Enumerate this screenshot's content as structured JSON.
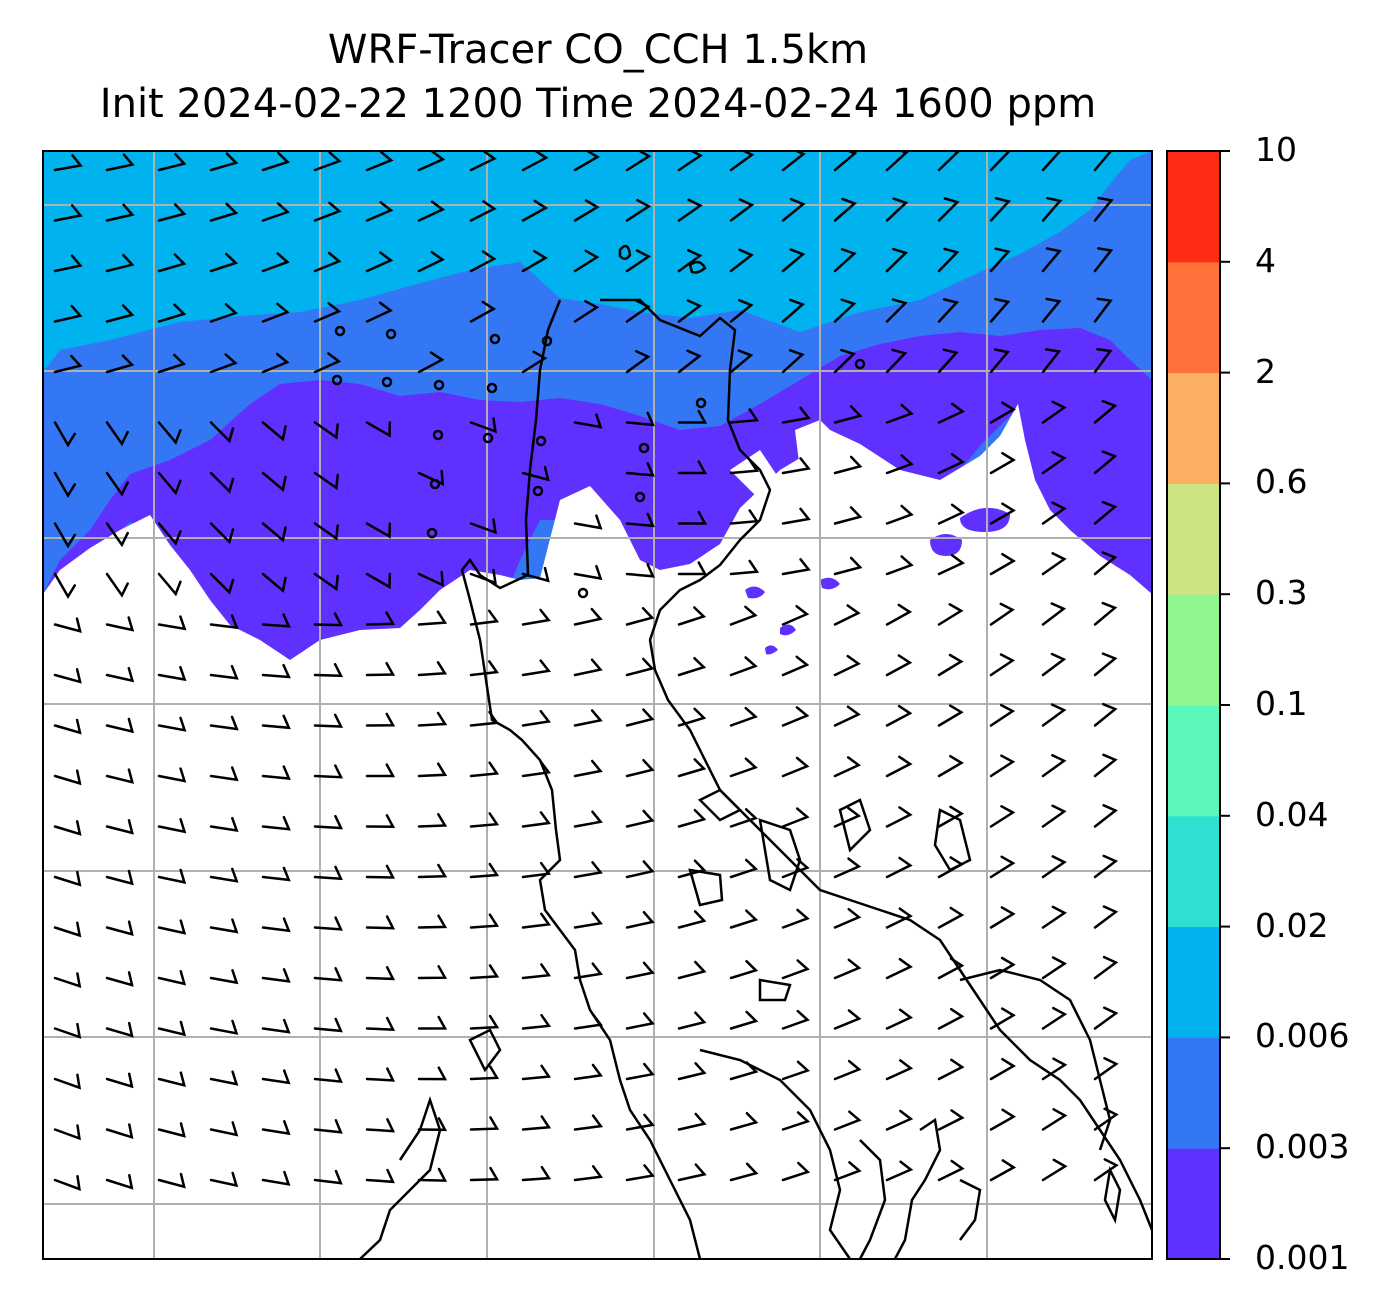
{
  "title_line1": "WRF-Tracer CO_CCH 1.5km",
  "title_line2": "Init 2024-02-22 1200 Time 2024-02-24 1600 ppm",
  "colorbar": {
    "levels": [
      "0.001",
      "0.003",
      "0.006",
      "0.02",
      "0.04",
      "0.1",
      "0.3",
      "0.6",
      "2",
      "4",
      "10"
    ],
    "colors": [
      "#6030ff",
      "#3477f5",
      "#00b3ee",
      "#2ee0d2",
      "#5cf7bb",
      "#90f590",
      "#cce384",
      "#fbb062",
      "#ff7138",
      "#ff2b14"
    ]
  },
  "map": {
    "land_outline": "coastline",
    "gridlines": true,
    "wind_field": "barbs",
    "region_colors": {
      "level_0_006": "#00b3ee",
      "level_0_003": "#3477f5",
      "level_0_001": "#6030ff"
    }
  }
}
